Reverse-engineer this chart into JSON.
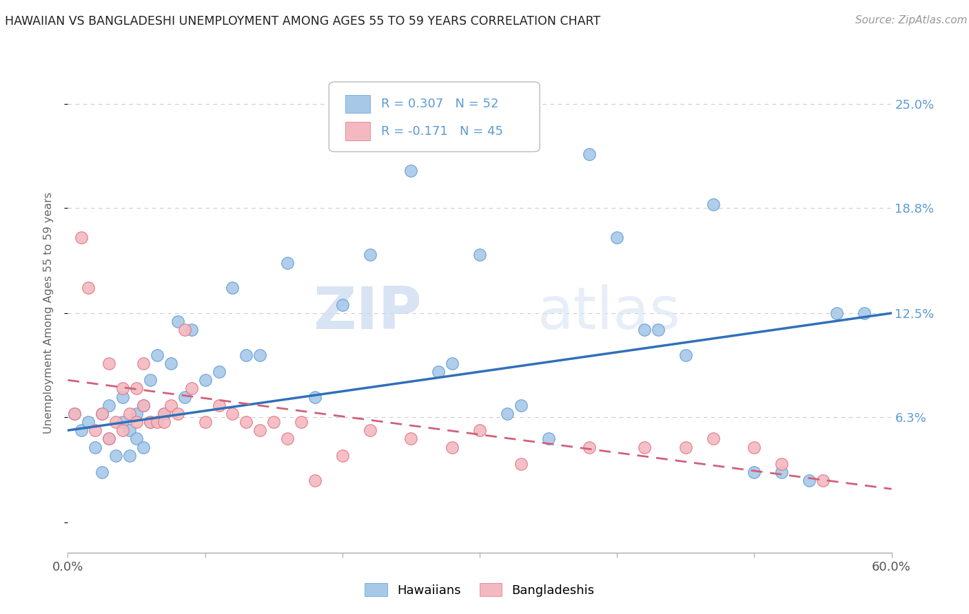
{
  "title": "HAWAIIAN VS BANGLADESHI UNEMPLOYMENT AMONG AGES 55 TO 59 YEARS CORRELATION CHART",
  "source": "Source: ZipAtlas.com",
  "ylabel": "Unemployment Among Ages 55 to 59 years",
  "xlim": [
    0,
    0.6
  ],
  "ylim": [
    -0.018,
    0.268
  ],
  "xticks": [
    0.0,
    0.1,
    0.2,
    0.3,
    0.4,
    0.5,
    0.6
  ],
  "xticklabels": [
    "0.0%",
    "",
    "",
    "",
    "",
    "",
    "60.0%"
  ],
  "ytick_positions": [
    0.0,
    0.063,
    0.125,
    0.188,
    0.25
  ],
  "ytick_labels": [
    "",
    "6.3%",
    "12.5%",
    "18.8%",
    "25.0%"
  ],
  "grid_color": "#cccccc",
  "background_color": "#ffffff",
  "watermark_zip": "ZIP",
  "watermark_atlas": "atlas",
  "legend_R1": "R = 0.307",
  "legend_N1": "N = 52",
  "legend_R2": "R = -0.171",
  "legend_N2": "N = 45",
  "hawaiian_color": "#a8c8e8",
  "bangladeshi_color": "#f4b8c0",
  "hawaiian_edge": "#5b9bd5",
  "bangladeshi_edge": "#e07080",
  "trend_blue": "#3070b8",
  "trend_pink": "#d0607a",
  "hawaiian_x": [
    0.005,
    0.01,
    0.015,
    0.02,
    0.025,
    0.025,
    0.03,
    0.03,
    0.035,
    0.04,
    0.04,
    0.045,
    0.045,
    0.05,
    0.05,
    0.055,
    0.055,
    0.06,
    0.06,
    0.065,
    0.07,
    0.075,
    0.08,
    0.085,
    0.09,
    0.1,
    0.11,
    0.12,
    0.13,
    0.14,
    0.16,
    0.18,
    0.2,
    0.22,
    0.25,
    0.28,
    0.3,
    0.32,
    0.35,
    0.38,
    0.4,
    0.43,
    0.45,
    0.47,
    0.5,
    0.52,
    0.54,
    0.56,
    0.58,
    0.33,
    0.27,
    0.42
  ],
  "hawaiian_y": [
    0.065,
    0.055,
    0.06,
    0.045,
    0.03,
    0.065,
    0.05,
    0.07,
    0.04,
    0.06,
    0.075,
    0.055,
    0.04,
    0.065,
    0.05,
    0.07,
    0.045,
    0.085,
    0.06,
    0.1,
    0.065,
    0.095,
    0.12,
    0.075,
    0.115,
    0.085,
    0.09,
    0.14,
    0.1,
    0.1,
    0.155,
    0.075,
    0.13,
    0.16,
    0.21,
    0.095,
    0.16,
    0.065,
    0.05,
    0.22,
    0.17,
    0.115,
    0.1,
    0.19,
    0.03,
    0.03,
    0.025,
    0.125,
    0.125,
    0.07,
    0.09,
    0.115
  ],
  "bangladeshi_x": [
    0.005,
    0.01,
    0.015,
    0.02,
    0.025,
    0.03,
    0.03,
    0.035,
    0.04,
    0.04,
    0.045,
    0.05,
    0.05,
    0.055,
    0.055,
    0.06,
    0.065,
    0.07,
    0.07,
    0.075,
    0.08,
    0.085,
    0.09,
    0.1,
    0.11,
    0.12,
    0.13,
    0.14,
    0.15,
    0.16,
    0.17,
    0.18,
    0.2,
    0.22,
    0.25,
    0.28,
    0.3,
    0.33,
    0.38,
    0.42,
    0.45,
    0.47,
    0.5,
    0.52,
    0.55
  ],
  "bangladeshi_y": [
    0.065,
    0.17,
    0.14,
    0.055,
    0.065,
    0.05,
    0.095,
    0.06,
    0.08,
    0.055,
    0.065,
    0.06,
    0.08,
    0.07,
    0.095,
    0.06,
    0.06,
    0.065,
    0.06,
    0.07,
    0.065,
    0.115,
    0.08,
    0.06,
    0.07,
    0.065,
    0.06,
    0.055,
    0.06,
    0.05,
    0.06,
    0.025,
    0.04,
    0.055,
    0.05,
    0.045,
    0.055,
    0.035,
    0.045,
    0.045,
    0.045,
    0.05,
    0.045,
    0.035,
    0.025
  ],
  "trend_h_x0": 0.0,
  "trend_h_x1": 0.6,
  "trend_h_y0": 0.055,
  "trend_h_y1": 0.125,
  "trend_b_x0": 0.0,
  "trend_b_x1": 0.6,
  "trend_b_y0": 0.085,
  "trend_b_y1": 0.02
}
